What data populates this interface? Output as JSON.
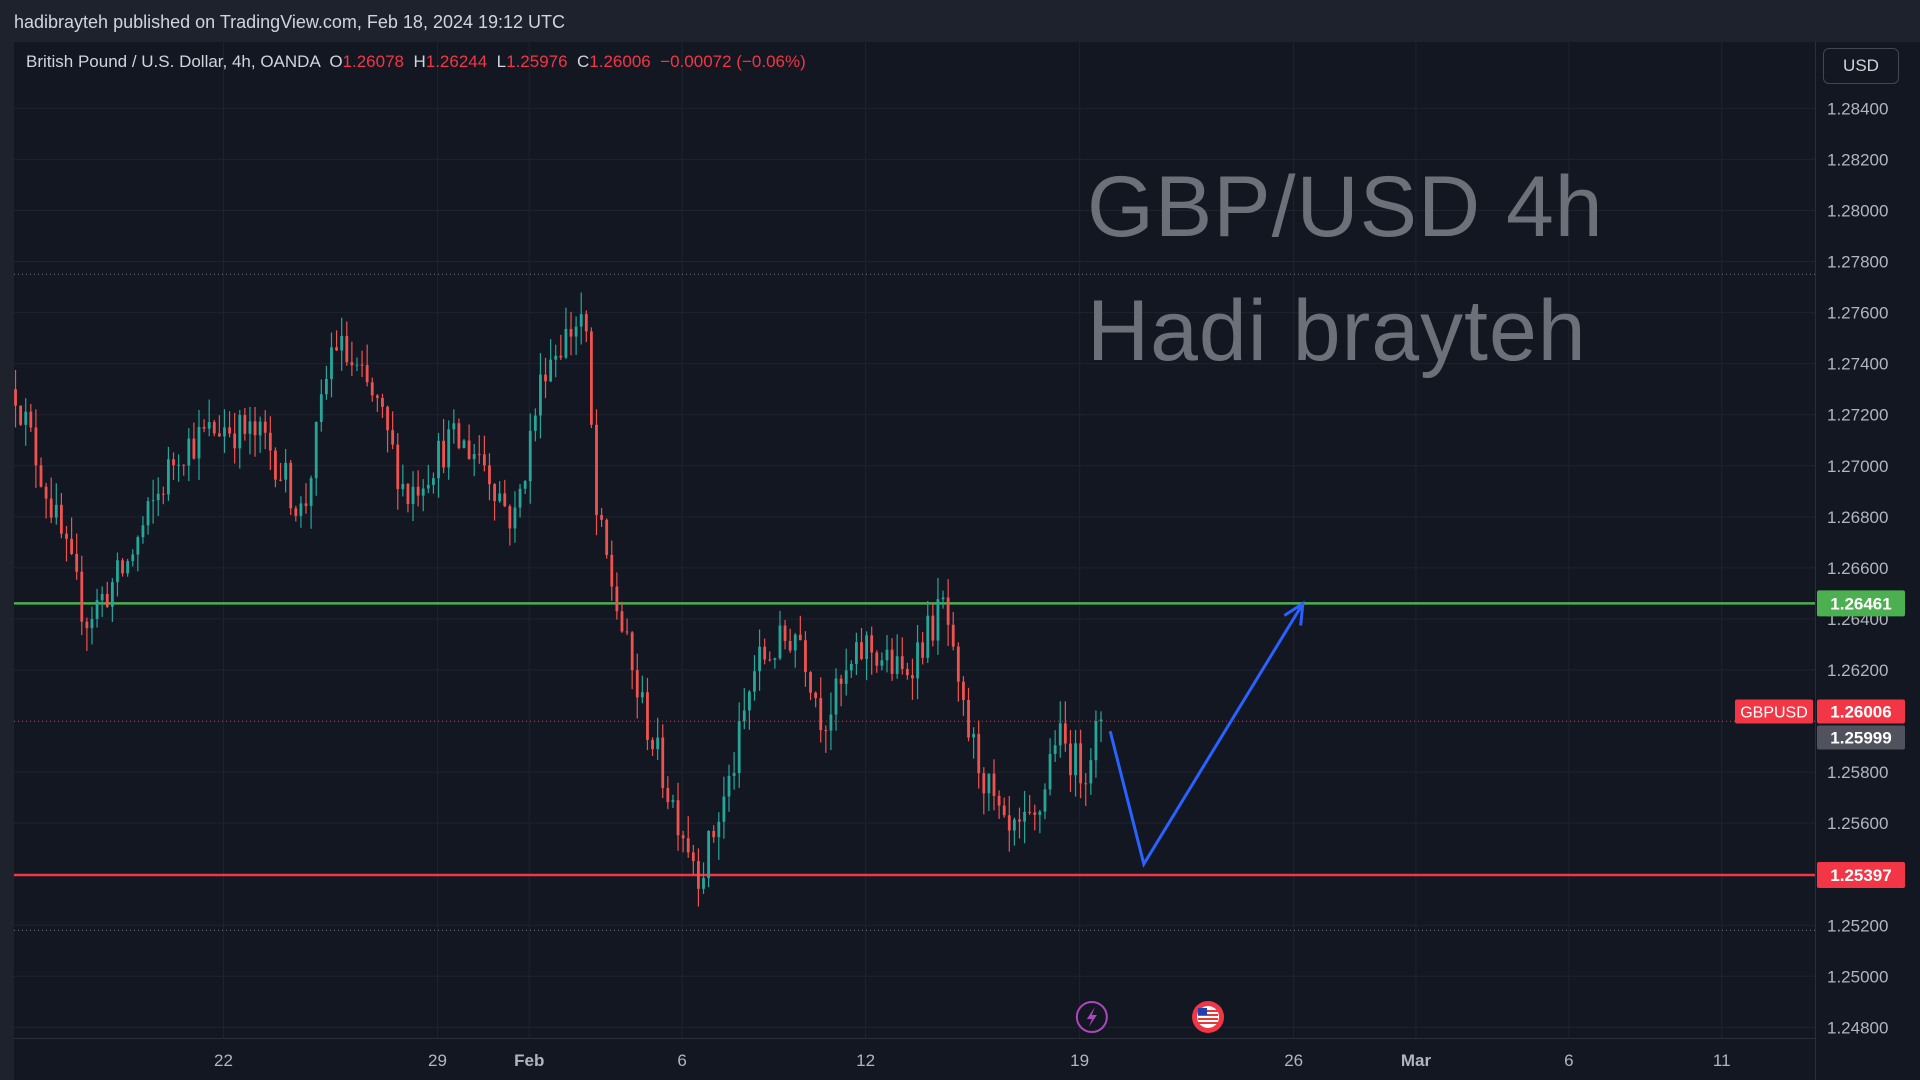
{
  "header": {
    "publisher": "hadibrayteh published on TradingView.com, Feb 18, 2024 19:12 UTC"
  },
  "legend": {
    "symbol": "British Pound / U.S. Dollar, 4h, OANDA",
    "open_label": "O",
    "open": "1.26078",
    "high_label": "H",
    "high": "1.26244",
    "low_label": "L",
    "low": "1.25976",
    "close_label": "C",
    "close": "1.26006",
    "change": "−0.00072 (−0.06%)"
  },
  "price_axis": {
    "currency_button": "USD"
  },
  "watermark": {
    "line1": "GBP/USD 4h",
    "line2": "Hadi brayteh"
  },
  "colors": {
    "background": "#131722",
    "up": "#26a69a",
    "down": "#ef5350",
    "support": "#f23645",
    "resistance": "#4caf50",
    "arrow": "#2962ff"
  },
  "chart_data": {
    "type": "candlestick",
    "symbol": "GBPUSD",
    "timeframe": "4h",
    "y_ticks": [
      "1.28400",
      "1.28200",
      "1.28000",
      "1.27800",
      "1.27600",
      "1.27400",
      "1.27200",
      "1.27000",
      "1.26800",
      "1.26600",
      "1.26400",
      "1.26200",
      "1.25800",
      "1.25600",
      "1.25200",
      "1.25000",
      "1.24800"
    ],
    "y_tick_values": [
      1.284,
      1.282,
      1.28,
      1.278,
      1.276,
      1.274,
      1.272,
      1.27,
      1.268,
      1.266,
      1.264,
      1.262,
      1.258,
      1.256,
      1.252,
      1.25,
      1.248
    ],
    "ylim": [
      1.2468,
      1.2866
    ],
    "x_ticks": [
      {
        "label": "22",
        "day": 22,
        "bold": false
      },
      {
        "label": "29",
        "day": 29,
        "bold": false
      },
      {
        "label": "Feb",
        "day": 32,
        "bold": true
      },
      {
        "label": "6",
        "day": 37,
        "bold": false
      },
      {
        "label": "12",
        "day": 43,
        "bold": false
      },
      {
        "label": "19",
        "day": 50,
        "bold": false
      },
      {
        "label": "26",
        "day": 57,
        "bold": false
      },
      {
        "label": "Mar",
        "day": 61,
        "bold": true
      },
      {
        "label": "6",
        "day": 66,
        "bold": false
      },
      {
        "label": "11",
        "day": 71,
        "bold": false
      }
    ],
    "x_range_days": [
      15.15,
      74.05
    ],
    "horizontal_levels": [
      {
        "name": "resistance",
        "value": 1.26461,
        "label": "1.26461"
      },
      {
        "name": "support",
        "value": 1.25397,
        "label": "1.25397"
      }
    ],
    "dotted_levels": [
      1.2775,
      1.2518
    ],
    "price_tags": [
      {
        "symbol": "GBPUSD",
        "value": 1.26006,
        "label": "1.26006"
      },
      {
        "value": 1.25999,
        "label": "1.25999"
      }
    ],
    "projection_path": [
      [
        51.0,
        1.2596
      ],
      [
        52.1,
        1.2544
      ],
      [
        57.3,
        1.2646
      ]
    ],
    "event_markers": [
      {
        "name": "lightning",
        "day": 50.4
      },
      {
        "name": "us-flag",
        "day": 54.2
      }
    ],
    "anchor_points": [
      [
        15.2,
        1.273
      ],
      [
        17.5,
        1.264
      ],
      [
        18.8,
        1.266
      ],
      [
        20.5,
        1.2706
      ],
      [
        22.0,
        1.2716
      ],
      [
        23.4,
        1.271
      ],
      [
        24.6,
        1.268
      ],
      [
        25.6,
        1.275
      ],
      [
        27.0,
        1.2724
      ],
      [
        28.0,
        1.2688
      ],
      [
        29.4,
        1.271
      ],
      [
        30.4,
        1.2705
      ],
      [
        31.5,
        1.2677
      ],
      [
        32.5,
        1.274
      ],
      [
        33.8,
        1.276
      ],
      [
        34.2,
        1.268
      ],
      [
        35.4,
        1.2617
      ],
      [
        36.5,
        1.2574
      ],
      [
        37.6,
        1.254
      ],
      [
        38.6,
        1.2578
      ],
      [
        39.4,
        1.2622
      ],
      [
        40.8,
        1.2636
      ],
      [
        41.6,
        1.26
      ],
      [
        43.0,
        1.263
      ],
      [
        44.2,
        1.2618
      ],
      [
        45.6,
        1.2646
      ],
      [
        46.0,
        1.261
      ],
      [
        46.4,
        1.2594
      ],
      [
        47.4,
        1.256
      ],
      [
        47.6,
        1.2553
      ],
      [
        48.6,
        1.256
      ],
      [
        49.2,
        1.2595
      ],
      [
        50.1,
        1.258
      ],
      [
        50.7,
        1.2601
      ]
    ]
  }
}
